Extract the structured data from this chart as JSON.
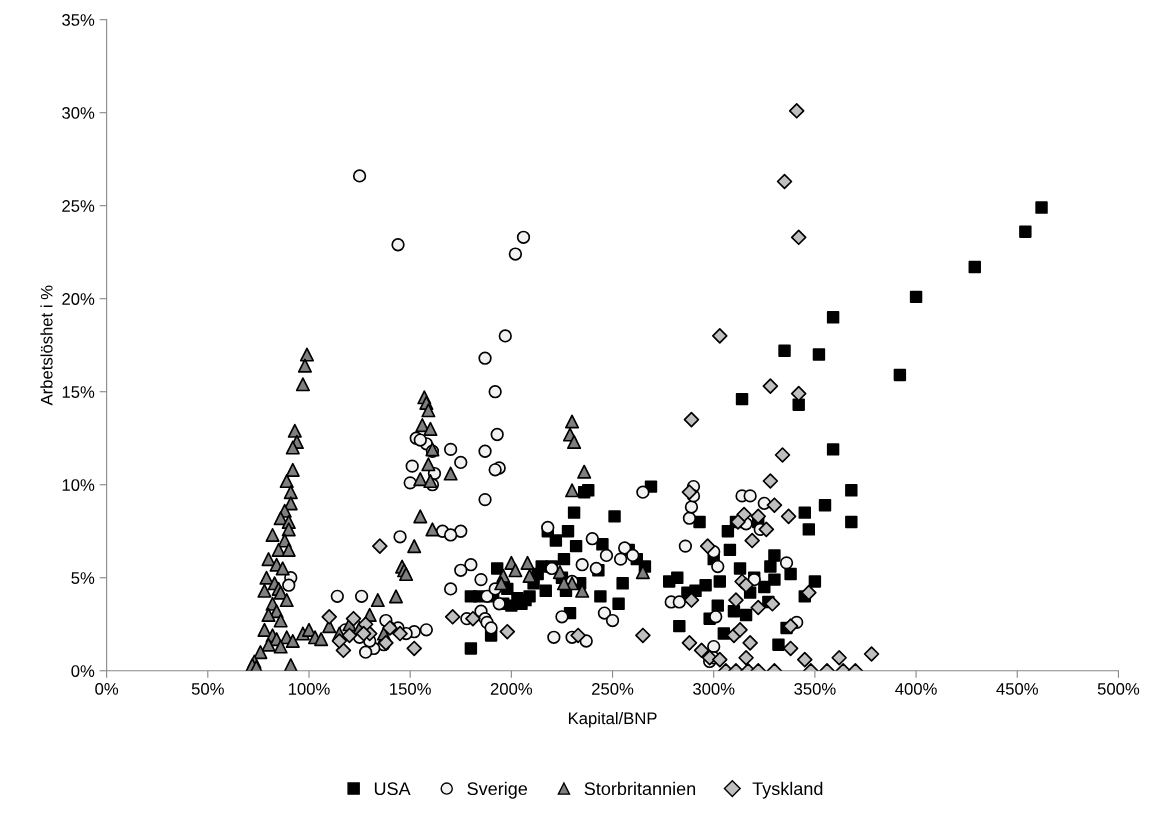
{
  "chart_data": {
    "type": "scatter",
    "xlabel": "Kapital/BNP",
    "ylabel": "Arbetslöshet i %",
    "xlim": [
      0,
      500
    ],
    "ylim": [
      0,
      35
    ],
    "xticks": [
      {
        "value": 0,
        "label": "0%"
      },
      {
        "value": 50,
        "label": "50%"
      },
      {
        "value": 100,
        "label": "100%"
      },
      {
        "value": 150,
        "label": "150%"
      },
      {
        "value": 200,
        "label": "200%"
      },
      {
        "value": 250,
        "label": "250%"
      },
      {
        "value": 300,
        "label": "300%"
      },
      {
        "value": 350,
        "label": "350%"
      },
      {
        "value": 400,
        "label": "400%"
      },
      {
        "value": 450,
        "label": "450%"
      },
      {
        "value": 500,
        "label": "500%"
      }
    ],
    "yticks": [
      {
        "value": 0,
        "label": "0%"
      },
      {
        "value": 5,
        "label": "5%"
      },
      {
        "value": 10,
        "label": "10%"
      },
      {
        "value": 15,
        "label": "15%"
      },
      {
        "value": 20,
        "label": "20%"
      },
      {
        "value": 25,
        "label": "25%"
      },
      {
        "value": 30,
        "label": "30%"
      },
      {
        "value": 35,
        "label": "35%"
      }
    ],
    "grid": false,
    "legend": "bottom",
    "series": [
      {
        "name": "USA",
        "color": "#000000",
        "marker": "square",
        "x": [
          462,
          454,
          429,
          400,
          392,
          359,
          359,
          352,
          335,
          342,
          314,
          368,
          368,
          355,
          345,
          347,
          350,
          345,
          336,
          330,
          330,
          328,
          325,
          322,
          320,
          318,
          316,
          313,
          311,
          310,
          308,
          307,
          305,
          303,
          302,
          300,
          298,
          296,
          293,
          291,
          287,
          283,
          282,
          278,
          269,
          266,
          262,
          258,
          255,
          253,
          251,
          245,
          244,
          243,
          238,
          236,
          234,
          232,
          231,
          229,
          228,
          227,
          226,
          225,
          222,
          220,
          218,
          217,
          215,
          213,
          211,
          209,
          207,
          205,
          203,
          200,
          198,
          196,
          193,
          191,
          190,
          184,
          180,
          180,
          332,
          327,
          338
        ],
        "values": [
          24.9,
          23.6,
          21.7,
          20.1,
          15.9,
          19.0,
          11.9,
          17.0,
          17.2,
          14.3,
          14.6,
          9.7,
          8.0,
          8.9,
          8.5,
          7.6,
          4.8,
          4.0,
          2.3,
          6.2,
          4.9,
          5.6,
          4.5,
          8.0,
          5.0,
          4.2,
          3.0,
          5.5,
          8.0,
          3.2,
          6.5,
          7.5,
          2.0,
          4.8,
          3.5,
          6.0,
          2.8,
          4.6,
          8.0,
          4.3,
          4.2,
          2.4,
          5.0,
          4.8,
          9.9,
          5.6,
          6.0,
          6.5,
          4.7,
          3.6,
          8.3,
          6.8,
          4.0,
          5.4,
          9.7,
          9.6,
          4.7,
          6.7,
          8.5,
          3.1,
          7.5,
          4.3,
          6.0,
          5.0,
          7.0,
          5.6,
          7.5,
          4.3,
          5.6,
          5.2,
          4.7,
          4.0,
          3.8,
          3.6,
          3.9,
          3.5,
          4.4,
          3.6,
          5.5,
          4.0,
          1.9,
          4.0,
          1.2,
          4.0,
          1.4,
          3.7,
          5.2
        ]
      },
      {
        "name": "Sverige",
        "color": "#f2f2f2",
        "marker": "circle",
        "x": [
          125,
          144,
          206,
          202,
          197,
          187,
          192,
          193,
          187,
          194,
          192,
          175,
          170,
          158,
          153,
          155,
          161,
          162,
          161,
          151,
          150,
          187,
          145,
          166,
          175,
          170,
          180,
          185,
          175,
          170,
          188,
          192,
          194,
          185,
          187,
          188,
          190,
          178,
          158,
          152,
          148,
          144,
          140,
          137,
          132,
          130,
          128,
          125,
          118,
          114,
          126,
          138,
          91,
          90,
          218,
          220,
          230,
          235,
          240,
          242,
          247,
          256,
          260,
          265,
          254,
          246,
          237,
          230,
          225,
          221,
          250,
          286,
          288,
          290,
          289,
          290,
          279,
          283,
          300,
          302,
          301,
          298,
          314,
          316,
          318,
          325,
          323,
          320,
          336,
          341,
          300,
          300
        ],
        "values": [
          26.6,
          22.9,
          23.3,
          22.4,
          18.0,
          16.8,
          15.0,
          12.7,
          11.8,
          10.9,
          10.8,
          11.2,
          11.9,
          12.2,
          12.5,
          12.4,
          11.8,
          10.6,
          10.0,
          11.0,
          10.1,
          9.2,
          7.2,
          7.5,
          7.5,
          7.3,
          5.7,
          4.9,
          5.4,
          4.4,
          4.0,
          4.4,
          3.6,
          3.2,
          2.8,
          2.6,
          2.3,
          2.8,
          2.2,
          2.1,
          2.0,
          2.3,
          2.3,
          1.4,
          1.2,
          1.6,
          1.0,
          1.8,
          2.2,
          4.0,
          4.0,
          2.7,
          5.0,
          4.6,
          7.7,
          5.5,
          4.8,
          5.7,
          7.1,
          5.5,
          6.2,
          6.6,
          6.2,
          9.6,
          6.0,
          3.1,
          1.6,
          1.8,
          2.9,
          1.8,
          2.7,
          6.7,
          8.2,
          9.9,
          8.8,
          9.4,
          3.7,
          3.7,
          6.4,
          5.6,
          2.9,
          0.5,
          9.4,
          7.9,
          9.4,
          9.0,
          7.6,
          4.9,
          5.8,
          2.6,
          1.3,
          0.7
        ]
      },
      {
        "name": "Storbritannien",
        "color": "#7f7f7f",
        "marker": "triangle",
        "x": [
          99,
          98,
          97,
          93,
          94,
          92,
          92,
          89,
          91,
          91,
          88,
          86,
          90,
          90,
          82,
          88,
          85,
          90,
          80,
          84,
          87,
          79,
          83,
          85,
          78,
          86,
          89,
          82,
          84,
          80,
          86,
          78,
          82,
          84,
          89,
          86,
          80,
          76,
          73,
          72,
          74,
          91,
          92,
          97,
          100,
          103,
          106,
          110,
          115,
          120,
          125,
          130,
          134,
          137,
          143,
          146,
          147,
          148,
          152,
          155,
          161,
          157,
          158,
          159,
          156,
          160,
          161,
          159,
          155,
          160,
          170,
          230,
          229,
          231,
          236,
          230,
          200,
          202,
          196,
          195,
          208,
          209,
          230,
          235,
          224,
          226,
          265
        ],
        "values": [
          17.0,
          16.4,
          15.4,
          12.9,
          12.3,
          12.0,
          10.8,
          10.2,
          9.6,
          9.0,
          8.6,
          8.2,
          8.0,
          7.6,
          7.3,
          7.0,
          6.5,
          6.5,
          6.0,
          5.7,
          5.5,
          5.0,
          4.7,
          4.4,
          4.3,
          4.2,
          3.8,
          3.6,
          3.2,
          3.0,
          2.7,
          2.2,
          1.9,
          1.7,
          1.8,
          1.3,
          1.4,
          1.0,
          0.5,
          0.3,
          0.2,
          0.3,
          1.6,
          2.0,
          2.2,
          1.8,
          1.7,
          2.4,
          2.0,
          2.5,
          2.3,
          3.0,
          3.8,
          2.0,
          4.0,
          5.6,
          5.4,
          5.2,
          6.7,
          8.3,
          7.6,
          14.7,
          14.4,
          14.0,
          13.2,
          13.0,
          11.9,
          11.1,
          10.3,
          10.2,
          10.6,
          13.4,
          12.7,
          12.3,
          10.7,
          9.7,
          5.8,
          5.4,
          5.1,
          4.7,
          5.8,
          5.1,
          4.7,
          4.3,
          5.3,
          4.7,
          5.3
        ]
      },
      {
        "name": "Tyskland",
        "color": "#bfbfbf",
        "marker": "diamond",
        "x": [
          341,
          335,
          342,
          342,
          328,
          303,
          289,
          334,
          328,
          337,
          330,
          322,
          315,
          312,
          288,
          297,
          326,
          319,
          322,
          314,
          316,
          311,
          329,
          347,
          338,
          289,
          288,
          294,
          298,
          303,
          310,
          313,
          318,
          316,
          306,
          311,
          317,
          322,
          330,
          338,
          345,
          348,
          356,
          362,
          364,
          370,
          378,
          265,
          233,
          198,
          181,
          171,
          152,
          145,
          140,
          135,
          130,
          128,
          122,
          117,
          115,
          110,
          127,
          138,
          120
        ],
        "values": [
          30.1,
          26.3,
          23.3,
          14.9,
          15.3,
          18.0,
          13.5,
          11.6,
          10.2,
          8.3,
          8.9,
          8.3,
          8.4,
          8.0,
          9.6,
          6.7,
          7.6,
          7.0,
          3.4,
          4.8,
          4.6,
          3.8,
          3.6,
          4.2,
          2.4,
          3.8,
          1.5,
          1.1,
          0.7,
          0.6,
          1.9,
          2.2,
          1.5,
          0.7,
          0.0,
          0.0,
          0.0,
          0.0,
          0.0,
          1.2,
          0.6,
          0.0,
          0.0,
          0.7,
          0.0,
          0.0,
          0.9,
          1.9,
          1.9,
          2.1,
          2.8,
          2.9,
          1.2,
          2.0,
          2.3,
          6.7,
          2.0,
          2.5,
          2.8,
          1.1,
          1.6,
          2.9,
          2.0,
          1.5,
          1.9
        ]
      }
    ]
  }
}
